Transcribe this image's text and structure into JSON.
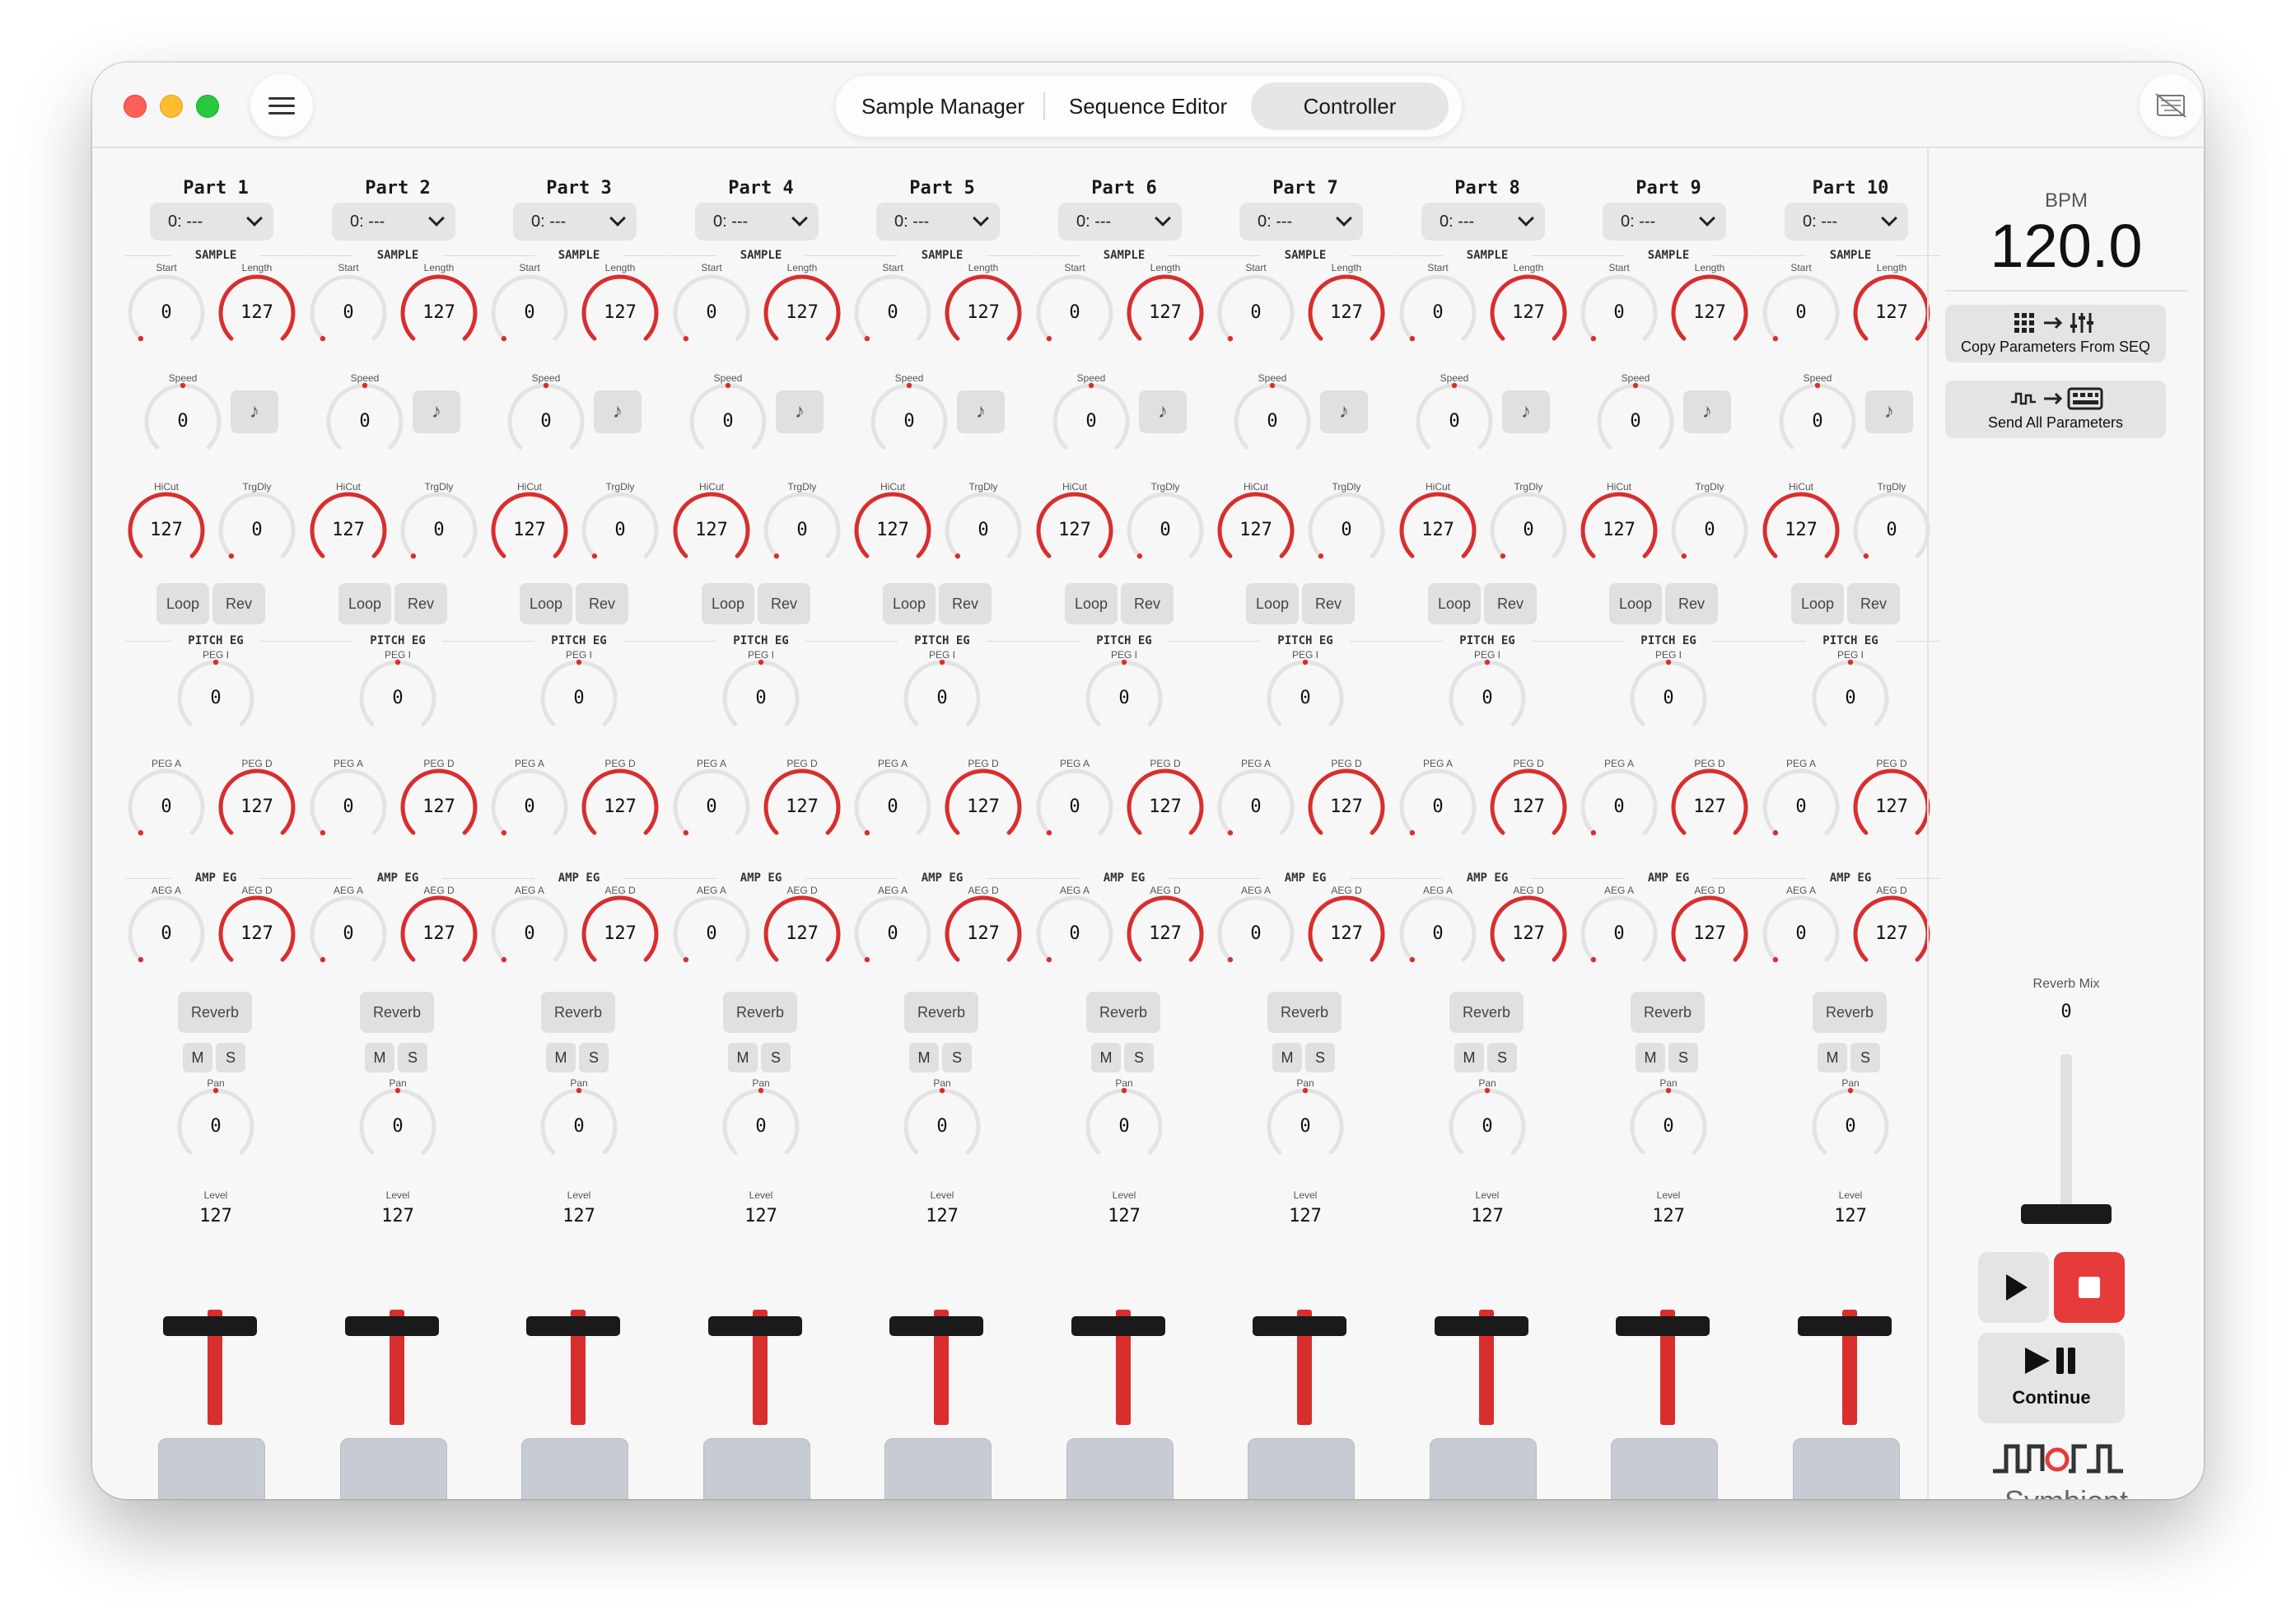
{
  "tabs": [
    {
      "label": "Sample Manager",
      "active": false
    },
    {
      "label": "Sequence Editor",
      "active": false
    },
    {
      "label": "Controller",
      "active": true
    }
  ],
  "parts": [
    {
      "title": "Part 1"
    },
    {
      "title": "Part 2"
    },
    {
      "title": "Part 3"
    },
    {
      "title": "Part 4"
    },
    {
      "title": "Part 5"
    },
    {
      "title": "Part 6"
    },
    {
      "title": "Part 7"
    },
    {
      "title": "Part 8"
    },
    {
      "title": "Part 9"
    },
    {
      "title": "Part 10"
    }
  ],
  "part_defaults": {
    "sample_select": "0: ---",
    "sections": {
      "sample": "SAMPLE",
      "pitch_eg": "PITCH EG",
      "amp_eg": "AMP EG"
    },
    "labels": {
      "start": "Start",
      "length": "Length",
      "speed": "Speed",
      "hicut": "HiCut",
      "trgdly": "TrgDly",
      "peg_i": "PEG I",
      "peg_a": "PEG A",
      "peg_d": "PEG D",
      "aeg_a": "AEG A",
      "aeg_d": "AEG D",
      "pan": "Pan",
      "level": "Level"
    },
    "values": {
      "start": "0",
      "length": "127",
      "speed": "0",
      "hicut": "127",
      "trgdly": "0",
      "peg_i": "0",
      "peg_a": "0",
      "peg_d": "127",
      "aeg_a": "0",
      "aeg_d": "127",
      "pan": "0",
      "level": "127"
    },
    "buttons": {
      "loop": "Loop",
      "rev": "Rev",
      "reverb": "Reverb",
      "mute": "M",
      "solo": "S"
    },
    "note_icon": "music-note-icon",
    "level_fraction": 1.0
  },
  "sidebar": {
    "bpm_label": "BPM",
    "bpm_value": "120.0",
    "copy_label": "Copy Parameters From SEQ",
    "send_label": "Send All Parameters",
    "reverb_mix_label": "Reverb Mix",
    "reverb_mix_value": "0",
    "continue_label": "Continue",
    "logo_text": "Symbiont"
  },
  "colors": {
    "accent": "#d92e2e",
    "stop": "#e53b3b",
    "knob_track": "#e3e3e3"
  }
}
